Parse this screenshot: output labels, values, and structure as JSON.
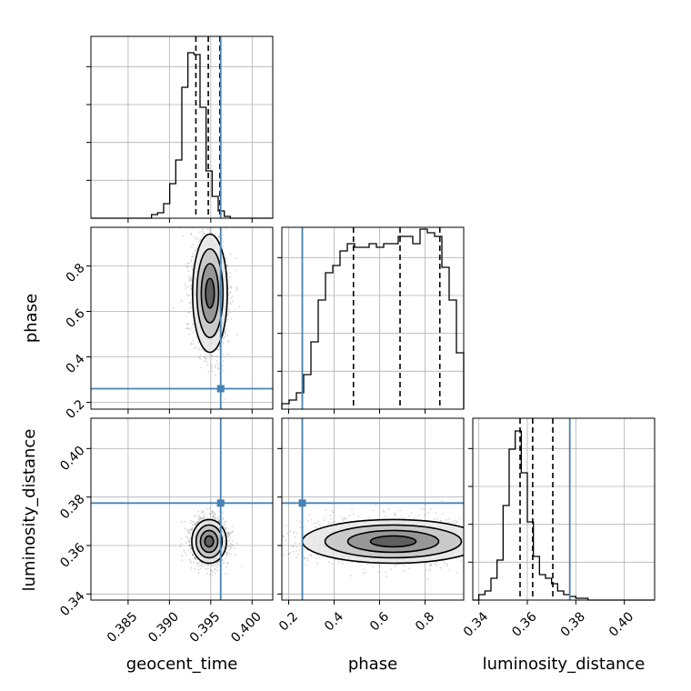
{
  "chart_data": {
    "type": "corner",
    "parameters": [
      "geocent_time",
      "phase",
      "luminosity_distance"
    ],
    "axis_labels": {
      "x": [
        "geocent_time",
        "phase",
        "luminosity_distance"
      ],
      "y": [
        "",
        "phase",
        "luminosity_distance"
      ]
    },
    "truths": {
      "geocent_time": 0.3962,
      "phase": 0.26,
      "luminosity_distance": 0.3775
    },
    "truth_color": "#4682b4",
    "contour_color": "#000000",
    "grid": true,
    "ranges": {
      "geocent_time": [
        0.3805,
        0.4025
      ],
      "phase": [
        0.17,
        0.97
      ],
      "luminosity_distance": [
        0.3375,
        0.4125
      ]
    },
    "ticks": {
      "geocent_time": [
        0.385,
        0.39,
        0.395,
        0.4
      ],
      "phase": [
        0.2,
        0.4,
        0.6,
        0.8
      ],
      "luminosity_distance": [
        0.34,
        0.36,
        0.38,
        0.4
      ]
    },
    "tick_labels": {
      "geocent_time": [
        "0.385",
        "0.390",
        "0.395",
        "0.400"
      ],
      "phase": [
        "0.2",
        "0.4",
        "0.6",
        "0.8"
      ],
      "luminosity_distance": [
        "0.34",
        "0.36",
        "0.38",
        "0.40"
      ]
    },
    "quantiles": {
      "geocent_time": [
        0.3932,
        0.3947,
        0.3961
      ],
      "phase": [
        0.485,
        0.69,
        0.865
      ],
      "luminosity_distance": [
        0.357,
        0.3622,
        0.3705
      ]
    },
    "marginals": {
      "geocent_time": [
        0,
        0,
        0,
        0,
        0,
        0,
        0,
        0,
        0,
        0,
        0.02,
        0.03,
        0.08,
        0.19,
        0.32,
        0.72,
        0.91,
        0.9,
        0.61,
        0.26,
        0.12,
        0.04,
        0.01,
        0,
        0,
        0,
        0,
        0,
        0,
        0
      ],
      "phase": [
        0.03,
        0.05,
        0.09,
        0.19,
        0.37,
        0.6,
        0.75,
        0.79,
        0.87,
        0.91,
        0.89,
        0.89,
        0.91,
        0.89,
        0.91,
        0.91,
        0.95,
        0.95,
        0.91,
        0.99,
        0.97,
        0.95,
        0.78,
        0.6,
        0.31
      ],
      "luminosity_distance": [
        0,
        0.03,
        0.05,
        0.12,
        0.22,
        0.52,
        0.83,
        0.93,
        0.7,
        0.43,
        0.24,
        0.14,
        0.12,
        0.09,
        0.05,
        0.03,
        0.02,
        0.01,
        0.01,
        0,
        0,
        0,
        0,
        0,
        0,
        0,
        0,
        0,
        0,
        0
      ]
    },
    "joint_2d": {
      "geocent_time_phase": {
        "center": [
          0.3949,
          0.68
        ],
        "sigma": [
          0.00105,
          0.13
        ]
      },
      "geocent_time_luminosity_distance": {
        "center": [
          0.3948,
          0.3617
        ],
        "sigma": [
          0.00105,
          0.0045
        ]
      },
      "phase_luminosity_distance": {
        "center": [
          0.66,
          0.3617
        ],
        "sigma": [
          0.2,
          0.0045
        ]
      }
    }
  }
}
